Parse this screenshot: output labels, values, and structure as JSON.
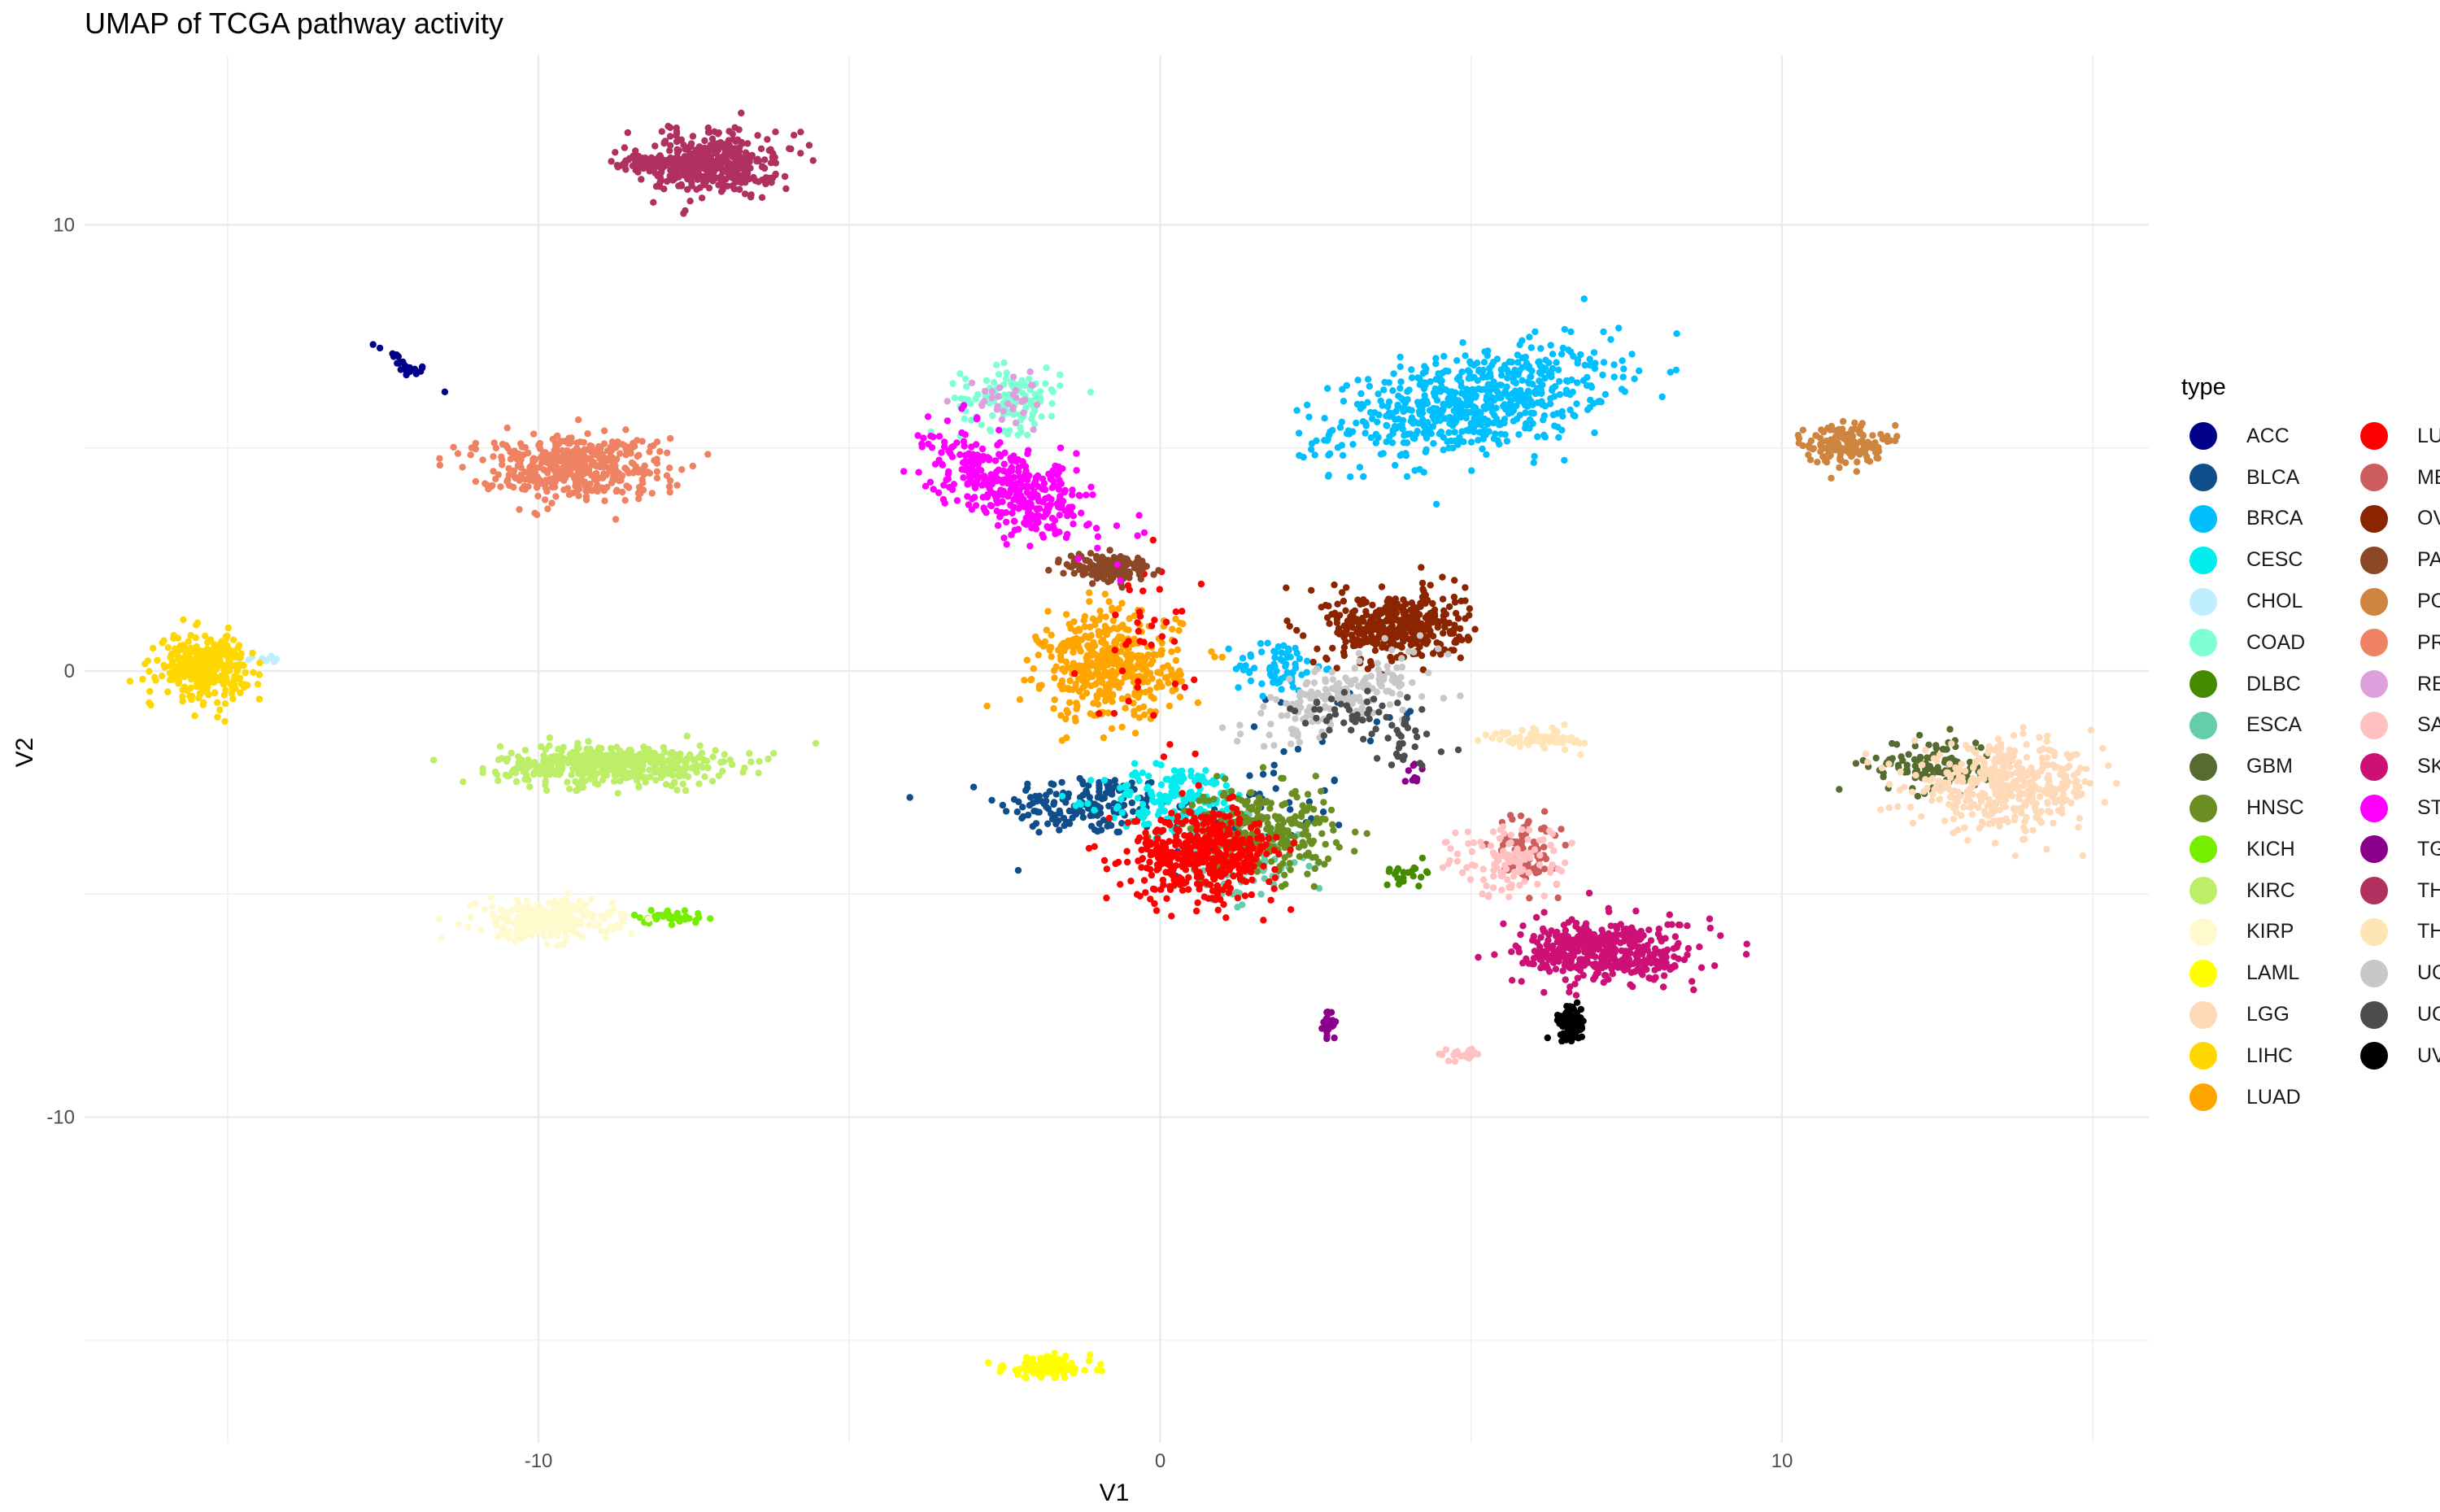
{
  "chart_data": {
    "type": "scatter",
    "title": "UMAP of TCGA pathway activity",
    "xlabel": "V1",
    "ylabel": "V2",
    "xlim": [
      -17.3,
      15.9
    ],
    "ylim": [
      -17.3,
      13.8
    ],
    "x_ticks": [
      -10,
      0,
      10
    ],
    "y_ticks": [
      -10,
      0,
      10
    ],
    "grid": true,
    "legend_title": "type",
    "legend_position": "right",
    "series": [
      {
        "name": "ACC",
        "color": "#00008B",
        "clusters": [
          {
            "cx": -12.2,
            "cy": 6.9,
            "sx": 0.25,
            "sy": 0.12,
            "n": 25,
            "slope": -0.8
          }
        ]
      },
      {
        "name": "BLCA",
        "color": "#104E8B",
        "clusters": [
          {
            "cx": -1.2,
            "cy": -3.0,
            "sx": 0.7,
            "sy": 0.35,
            "n": 160
          },
          {
            "cx": 1.5,
            "cy": -3.2,
            "sx": 0.8,
            "sy": 0.6,
            "n": 50
          },
          {
            "cx": 3.0,
            "cy": -1.0,
            "sx": 0.6,
            "sy": 0.3,
            "n": 15
          }
        ]
      },
      {
        "name": "BRCA",
        "color": "#00BFFF",
        "clusters": [
          {
            "cx": 5.0,
            "cy": 6.0,
            "sx": 1.1,
            "sy": 0.55,
            "n": 650,
            "slope": 0.25
          },
          {
            "cx": 1.9,
            "cy": 0.1,
            "sx": 0.35,
            "sy": 0.3,
            "n": 70
          }
        ]
      },
      {
        "name": "CESC",
        "color": "#00EEEE",
        "clusters": [
          {
            "cx": 0.3,
            "cy": -2.9,
            "sx": 0.6,
            "sy": 0.4,
            "n": 170
          }
        ]
      },
      {
        "name": "CHOL",
        "color": "#BFEFFF",
        "clusters": [
          {
            "cx": -14.5,
            "cy": 0.3,
            "sx": 0.3,
            "sy": 0.06,
            "n": 12
          }
        ]
      },
      {
        "name": "COAD",
        "color": "#7FFFD4",
        "clusters": [
          {
            "cx": -2.4,
            "cy": 6.1,
            "sx": 0.4,
            "sy": 0.35,
            "n": 130
          }
        ]
      },
      {
        "name": "DLBC",
        "color": "#458B00",
        "clusters": [
          {
            "cx": 4.0,
            "cy": -4.5,
            "sx": 0.2,
            "sy": 0.12,
            "n": 22
          }
        ]
      },
      {
        "name": "ESCA",
        "color": "#66CDAA",
        "clusters": [
          {
            "cx": 1.3,
            "cy": -4.3,
            "sx": 0.55,
            "sy": 0.45,
            "n": 90
          }
        ]
      },
      {
        "name": "GBM",
        "color": "#556B2F",
        "clusters": [
          {
            "cx": 12.4,
            "cy": -2.1,
            "sx": 0.5,
            "sy": 0.3,
            "n": 120
          }
        ]
      },
      {
        "name": "HNSC",
        "color": "#6B8E23",
        "clusters": [
          {
            "cx": 1.6,
            "cy": -3.6,
            "sx": 0.6,
            "sy": 0.5,
            "n": 280
          }
        ]
      },
      {
        "name": "KICH",
        "color": "#76EE00",
        "clusters": [
          {
            "cx": -7.9,
            "cy": -5.5,
            "sx": 0.3,
            "sy": 0.08,
            "n": 35
          }
        ]
      },
      {
        "name": "KIRC",
        "color": "#BCEE68",
        "clusters": [
          {
            "cx": -8.8,
            "cy": -2.1,
            "sx": 0.9,
            "sy": 0.22,
            "n": 500
          }
        ]
      },
      {
        "name": "KIRP",
        "color": "#FFFACD",
        "clusters": [
          {
            "cx": -9.9,
            "cy": -5.6,
            "sx": 0.55,
            "sy": 0.22,
            "n": 270
          }
        ]
      },
      {
        "name": "LAML",
        "color": "#FFFF00",
        "clusters": [
          {
            "cx": -1.8,
            "cy": -15.6,
            "sx": 0.35,
            "sy": 0.12,
            "n": 150
          }
        ]
      },
      {
        "name": "LGG",
        "color": "#FFDAB9",
        "clusters": [
          {
            "cx": 13.6,
            "cy": -2.6,
            "sx": 0.75,
            "sy": 0.45,
            "n": 420
          }
        ]
      },
      {
        "name": "LIHC",
        "color": "#FFD700",
        "clusters": [
          {
            "cx": -15.4,
            "cy": 0.1,
            "sx": 0.35,
            "sy": 0.35,
            "n": 330
          }
        ]
      },
      {
        "name": "LUAD",
        "color": "#FFA500",
        "clusters": [
          {
            "cx": -0.8,
            "cy": 0.1,
            "sx": 0.55,
            "sy": 0.6,
            "n": 450
          }
        ]
      },
      {
        "name": "LUSC",
        "color": "#FF0000",
        "clusters": [
          {
            "cx": 0.7,
            "cy": -4.1,
            "sx": 0.6,
            "sy": 0.5,
            "n": 450
          },
          {
            "cx": -0.2,
            "cy": 0.6,
            "sx": 0.4,
            "sy": 0.9,
            "n": 40
          }
        ]
      },
      {
        "name": "MESO",
        "color": "#CD5C5C",
        "clusters": [
          {
            "cx": 5.9,
            "cy": -4.0,
            "sx": 0.25,
            "sy": 0.4,
            "n": 75
          }
        ]
      },
      {
        "name": "OV",
        "color": "#8B2500",
        "clusters": [
          {
            "cx": 3.8,
            "cy": 1.0,
            "sx": 0.55,
            "sy": 0.4,
            "n": 400
          }
        ]
      },
      {
        "name": "PAAD",
        "color": "#8B4726",
        "clusters": [
          {
            "cx": -0.8,
            "cy": 2.3,
            "sx": 0.35,
            "sy": 0.18,
            "n": 140
          }
        ]
      },
      {
        "name": "PCPG",
        "color": "#CD853F",
        "clusters": [
          {
            "cx": 11.0,
            "cy": 5.1,
            "sx": 0.3,
            "sy": 0.22,
            "n": 160
          }
        ]
      },
      {
        "name": "PRAD",
        "color": "#EE8262",
        "clusters": [
          {
            "cx": -9.5,
            "cy": 4.6,
            "sx": 0.75,
            "sy": 0.35,
            "n": 450
          }
        ]
      },
      {
        "name": "READ",
        "color": "#DDA0DD",
        "clusters": [
          {
            "cx": -2.4,
            "cy": 6.1,
            "sx": 0.35,
            "sy": 0.3,
            "n": 30
          }
        ]
      },
      {
        "name": "SARC",
        "color": "#FFC1C1",
        "clusters": [
          {
            "cx": 5.6,
            "cy": -4.3,
            "sx": 0.5,
            "sy": 0.4,
            "n": 110
          },
          {
            "cx": 4.8,
            "cy": -8.6,
            "sx": 0.18,
            "sy": 0.07,
            "n": 28
          }
        ]
      },
      {
        "name": "SKCM",
        "color": "#CD1076",
        "clusters": [
          {
            "cx": 7.2,
            "cy": -6.3,
            "sx": 0.7,
            "sy": 0.35,
            "n": 450
          }
        ]
      },
      {
        "name": "STAD",
        "color": "#FF00FF",
        "clusters": [
          {
            "cx": -2.4,
            "cy": 4.1,
            "sx": 0.65,
            "sy": 0.45,
            "n": 380,
            "slope": -0.45
          }
        ]
      },
      {
        "name": "TGCT",
        "color": "#8B008B",
        "clusters": [
          {
            "cx": 2.7,
            "cy": -7.9,
            "sx": 0.05,
            "sy": 0.18,
            "n": 25
          },
          {
            "cx": 4.1,
            "cy": -2.3,
            "sx": 0.1,
            "sy": 0.2,
            "n": 10
          }
        ]
      },
      {
        "name": "THCA",
        "color": "#B03060",
        "clusters": [
          {
            "cx": -7.2,
            "cy": 11.4,
            "sx": 0.5,
            "sy": 0.35,
            "n": 400
          },
          {
            "cx": -8.3,
            "cy": 11.4,
            "sx": 0.3,
            "sy": 0.1,
            "n": 60
          }
        ]
      },
      {
        "name": "THYM",
        "color": "#FFE4B5",
        "clusters": [
          {
            "cx": 6.1,
            "cy": -1.5,
            "sx": 0.35,
            "sy": 0.12,
            "n": 70
          }
        ]
      },
      {
        "name": "UCEC",
        "color": "#C8C8C8",
        "clusters": [
          {
            "cx": 3.0,
            "cy": -0.5,
            "sx": 0.75,
            "sy": 0.35,
            "n": 180,
            "slope": 0.45
          }
        ]
      },
      {
        "name": "UCS",
        "color": "#4D4D4D",
        "clusters": [
          {
            "cx": 3.2,
            "cy": -1.0,
            "sx": 0.5,
            "sy": 0.3,
            "n": 45
          },
          {
            "cx": 4.0,
            "cy": -1.7,
            "sx": 0.3,
            "sy": 0.3,
            "n": 25
          }
        ]
      },
      {
        "name": "UVM",
        "color": "#000000",
        "clusters": [
          {
            "cx": 6.6,
            "cy": -7.9,
            "sx": 0.12,
            "sy": 0.2,
            "n": 90
          }
        ]
      }
    ]
  }
}
